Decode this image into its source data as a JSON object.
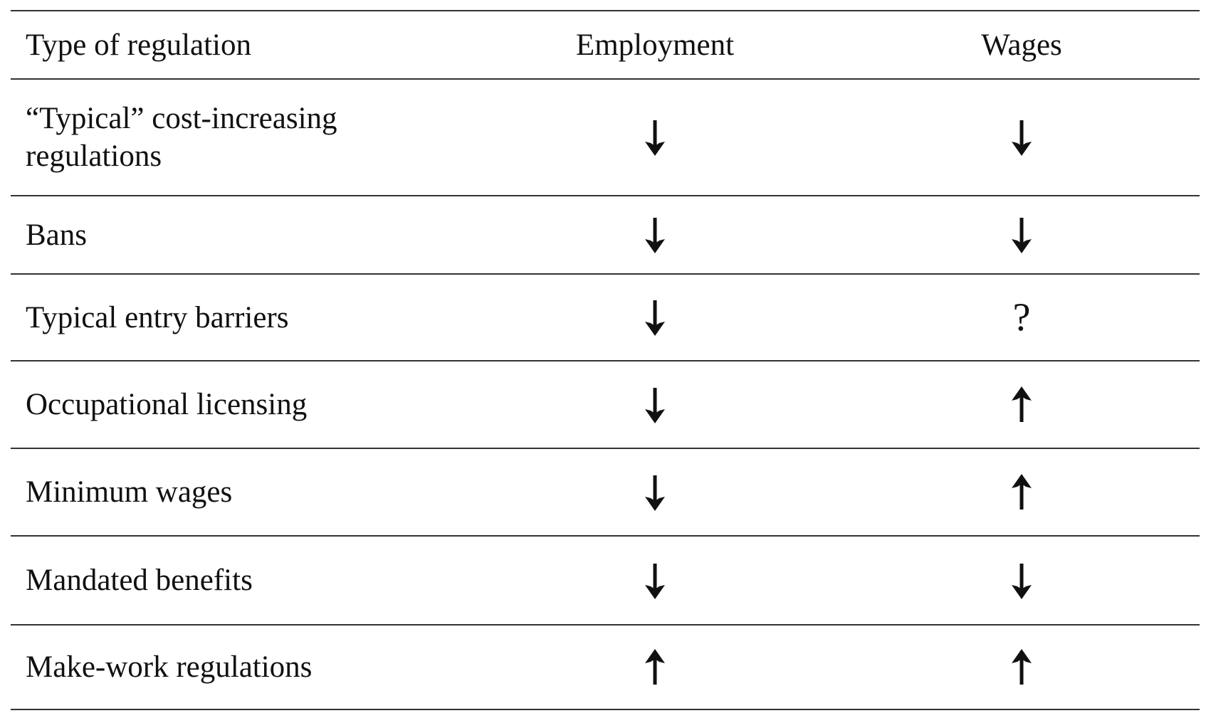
{
  "table": {
    "headers": {
      "type": "Type of regulation",
      "employment": "Employment",
      "wages": "Wages"
    },
    "rows": [
      {
        "type": "“Typical” cost-increasing regulations",
        "employment": "down",
        "wages": "down"
      },
      {
        "type": "Bans",
        "employment": "down",
        "wages": "down"
      },
      {
        "type": "Typical entry barriers",
        "employment": "down",
        "wages": "?"
      },
      {
        "type": "Occupational licensing",
        "employment": "down",
        "wages": "up"
      },
      {
        "type": "Minimum wages",
        "employment": "down",
        "wages": "up"
      },
      {
        "type": "Mandated benefits",
        "employment": "down",
        "wages": "down"
      },
      {
        "type": "Make-work regulations",
        "employment": "up",
        "wages": "up"
      }
    ]
  },
  "icons": {
    "down": "arrow-down-icon",
    "up": "arrow-up-icon"
  },
  "colors": {
    "text": "#111111",
    "rule": "#333333"
  }
}
